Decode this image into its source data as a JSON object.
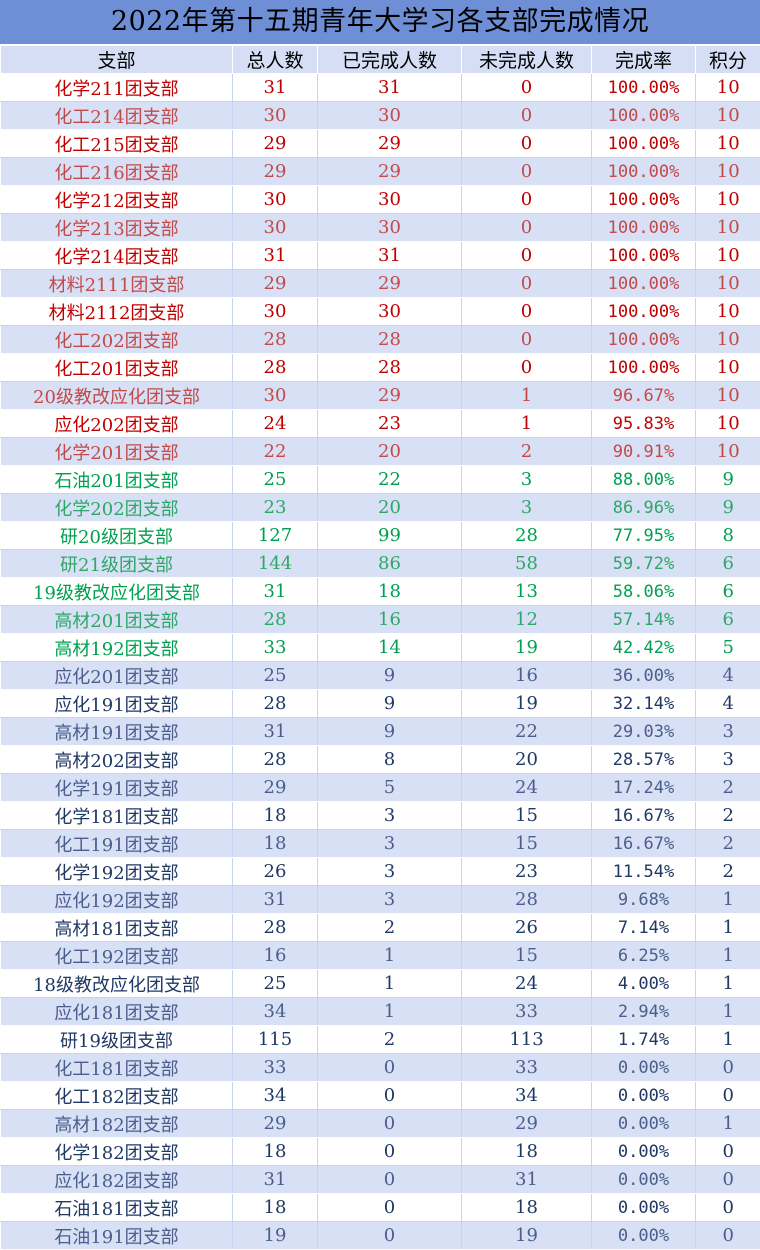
{
  "title": "2022年第十五期青年大学习各支部完成情况",
  "headers": [
    "支部",
    "总人数",
    "已完成人数",
    "未完成人数",
    "完成率",
    "积分"
  ],
  "colors": {
    "header_bg": "#6e8fd6",
    "red": "#c00000",
    "green": "#00a050",
    "blue": "#203864",
    "stripe": "#d7e0f5"
  },
  "rows": [
    {
      "branch": "化学211团支部",
      "total": "31",
      "done": "31",
      "undone": "0",
      "rate": "100.00%",
      "score": "10",
      "color": "red"
    },
    {
      "branch": "化工214团支部",
      "total": "30",
      "done": "30",
      "undone": "0",
      "rate": "100.00%",
      "score": "10",
      "color": "red"
    },
    {
      "branch": "化工215团支部",
      "total": "29",
      "done": "29",
      "undone": "0",
      "rate": "100.00%",
      "score": "10",
      "color": "red"
    },
    {
      "branch": "化工216团支部",
      "total": "29",
      "done": "29",
      "undone": "0",
      "rate": "100.00%",
      "score": "10",
      "color": "red"
    },
    {
      "branch": "化学212团支部",
      "total": "30",
      "done": "30",
      "undone": "0",
      "rate": "100.00%",
      "score": "10",
      "color": "red"
    },
    {
      "branch": "化学213团支部",
      "total": "30",
      "done": "30",
      "undone": "0",
      "rate": "100.00%",
      "score": "10",
      "color": "red"
    },
    {
      "branch": "化学214团支部",
      "total": "31",
      "done": "31",
      "undone": "0",
      "rate": "100.00%",
      "score": "10",
      "color": "red"
    },
    {
      "branch": "材料2111团支部",
      "total": "29",
      "done": "29",
      "undone": "0",
      "rate": "100.00%",
      "score": "10",
      "color": "red"
    },
    {
      "branch": "材料2112团支部",
      "total": "30",
      "done": "30",
      "undone": "0",
      "rate": "100.00%",
      "score": "10",
      "color": "red"
    },
    {
      "branch": "化工202团支部",
      "total": "28",
      "done": "28",
      "undone": "0",
      "rate": "100.00%",
      "score": "10",
      "color": "red"
    },
    {
      "branch": "化工201团支部",
      "total": "28",
      "done": "28",
      "undone": "0",
      "rate": "100.00%",
      "score": "10",
      "color": "red"
    },
    {
      "branch": "20级教改应化团支部",
      "total": "30",
      "done": "29",
      "undone": "1",
      "rate": "96.67%",
      "score": "10",
      "color": "red"
    },
    {
      "branch": "应化202团支部",
      "total": "24",
      "done": "23",
      "undone": "1",
      "rate": "95.83%",
      "score": "10",
      "color": "red"
    },
    {
      "branch": "化学201团支部",
      "total": "22",
      "done": "20",
      "undone": "2",
      "rate": "90.91%",
      "score": "10",
      "color": "red"
    },
    {
      "branch": "石油201团支部",
      "total": "25",
      "done": "22",
      "undone": "3",
      "rate": "88.00%",
      "score": "9",
      "color": "green"
    },
    {
      "branch": "化学202团支部",
      "total": "23",
      "done": "20",
      "undone": "3",
      "rate": "86.96%",
      "score": "9",
      "color": "green"
    },
    {
      "branch": "研20级团支部",
      "total": "127",
      "done": "99",
      "undone": "28",
      "rate": "77.95%",
      "score": "8",
      "color": "green"
    },
    {
      "branch": "研21级团支部",
      "total": "144",
      "done": "86",
      "undone": "58",
      "rate": "59.72%",
      "score": "6",
      "color": "green"
    },
    {
      "branch": "19级教改应化团支部",
      "total": "31",
      "done": "18",
      "undone": "13",
      "rate": "58.06%",
      "score": "6",
      "color": "green"
    },
    {
      "branch": "高材201团支部",
      "total": "28",
      "done": "16",
      "undone": "12",
      "rate": "57.14%",
      "score": "6",
      "color": "green"
    },
    {
      "branch": "高材192团支部",
      "total": "33",
      "done": "14",
      "undone": "19",
      "rate": "42.42%",
      "score": "5",
      "color": "green"
    },
    {
      "branch": "应化201团支部",
      "total": "25",
      "done": "9",
      "undone": "16",
      "rate": "36.00%",
      "score": "4",
      "color": "blue"
    },
    {
      "branch": "应化191团支部",
      "total": "28",
      "done": "9",
      "undone": "19",
      "rate": "32.14%",
      "score": "4",
      "color": "blue"
    },
    {
      "branch": "高材191团支部",
      "total": "31",
      "done": "9",
      "undone": "22",
      "rate": "29.03%",
      "score": "3",
      "color": "blue"
    },
    {
      "branch": "高材202团支部",
      "total": "28",
      "done": "8",
      "undone": "20",
      "rate": "28.57%",
      "score": "3",
      "color": "blue"
    },
    {
      "branch": "化学191团支部",
      "total": "29",
      "done": "5",
      "undone": "24",
      "rate": "17.24%",
      "score": "2",
      "color": "blue"
    },
    {
      "branch": "化学181团支部",
      "total": "18",
      "done": "3",
      "undone": "15",
      "rate": "16.67%",
      "score": "2",
      "color": "blue"
    },
    {
      "branch": "化工191团支部",
      "total": "18",
      "done": "3",
      "undone": "15",
      "rate": "16.67%",
      "score": "2",
      "color": "blue"
    },
    {
      "branch": "化学192团支部",
      "total": "26",
      "done": "3",
      "undone": "23",
      "rate": "11.54%",
      "score": "2",
      "color": "blue"
    },
    {
      "branch": "应化192团支部",
      "total": "31",
      "done": "3",
      "undone": "28",
      "rate": "9.68%",
      "score": "1",
      "color": "blue"
    },
    {
      "branch": "高材181团支部",
      "total": "28",
      "done": "2",
      "undone": "26",
      "rate": "7.14%",
      "score": "1",
      "color": "blue"
    },
    {
      "branch": "化工192团支部",
      "total": "16",
      "done": "1",
      "undone": "15",
      "rate": "6.25%",
      "score": "1",
      "color": "blue"
    },
    {
      "branch": "18级教改应化团支部",
      "total": "25",
      "done": "1",
      "undone": "24",
      "rate": "4.00%",
      "score": "1",
      "color": "blue"
    },
    {
      "branch": "应化181团支部",
      "total": "34",
      "done": "1",
      "undone": "33",
      "rate": "2.94%",
      "score": "1",
      "color": "blue"
    },
    {
      "branch": "研19级团支部",
      "total": "115",
      "done": "2",
      "undone": "113",
      "rate": "1.74%",
      "score": "1",
      "color": "blue"
    },
    {
      "branch": "化工181团支部",
      "total": "33",
      "done": "0",
      "undone": "33",
      "rate": "0.00%",
      "score": "0",
      "color": "blue"
    },
    {
      "branch": "化工182团支部",
      "total": "34",
      "done": "0",
      "undone": "34",
      "rate": "0.00%",
      "score": "0",
      "color": "blue"
    },
    {
      "branch": "高材182团支部",
      "total": "29",
      "done": "0",
      "undone": "29",
      "rate": "0.00%",
      "score": "1",
      "color": "blue"
    },
    {
      "branch": "化学182团支部",
      "total": "18",
      "done": "0",
      "undone": "18",
      "rate": "0.00%",
      "score": "0",
      "color": "blue"
    },
    {
      "branch": "应化182团支部",
      "total": "31",
      "done": "0",
      "undone": "31",
      "rate": "0.00%",
      "score": "0",
      "color": "blue"
    },
    {
      "branch": "石油181团支部",
      "total": "18",
      "done": "0",
      "undone": "18",
      "rate": "0.00%",
      "score": "0",
      "color": "blue"
    },
    {
      "branch": "石油191团支部",
      "total": "19",
      "done": "0",
      "undone": "19",
      "rate": "0.00%",
      "score": "0",
      "color": "blue"
    }
  ]
}
